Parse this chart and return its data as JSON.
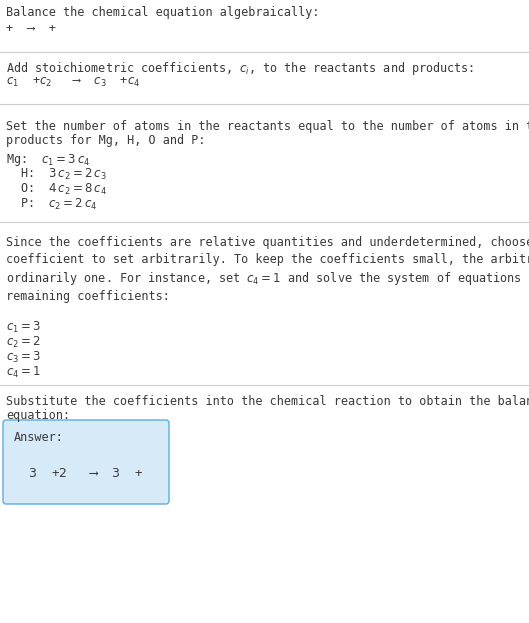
{
  "title": "Balance the chemical equation algebraically:",
  "line1": "+  ⟶  +",
  "section1_header": "Add stoichiometric coefficients, $c_i$, to the reactants and products:",
  "section1_eq": "$c_1$  +$c_2$   ⟶  $c_3$  +$c_4$",
  "section2_header_line1": "Set the number of atoms in the reactants equal to the number of atoms in the",
  "section2_header_line2": "products for Mg, H, O and P:",
  "section2_lines": [
    [
      "Mg:",
      "$c_1 = 3\\,c_4$"
    ],
    [
      "H:",
      "$3\\,c_2 = 2\\,c_3$"
    ],
    [
      "O:",
      "$4\\,c_2 = 8\\,c_4$"
    ],
    [
      "P:",
      "$c_2 = 2\\,c_4$"
    ]
  ],
  "section3_header": "Since the coefficients are relative quantities and underdetermined, choose a\ncoefficient to set arbitrarily. To keep the coefficients small, the arbitrary value is\nordinarily one. For instance, set $c_4 = 1$ and solve the system of equations for the\nremaining coefficients:",
  "section3_lines": [
    "$c_1 = 3$",
    "$c_2 = 2$",
    "$c_3 = 3$",
    "$c_4 = 1$"
  ],
  "section4_header_line1": "Substitute the coefficients into the chemical reaction to obtain the balanced",
  "section4_header_line2": "equation:",
  "answer_label": "Answer:",
  "answer_eq": "$3$  +$2$   ⟶  $3$  +",
  "bg_color": "#ffffff",
  "text_color": "#3a3a3a",
  "answer_box_facecolor": "#d6eaf8",
  "answer_box_edgecolor": "#5dade2",
  "divider_color": "#cccccc",
  "font_size": 8.5,
  "mono_font": "DejaVu Sans Mono",
  "sans_font": "DejaVu Sans"
}
